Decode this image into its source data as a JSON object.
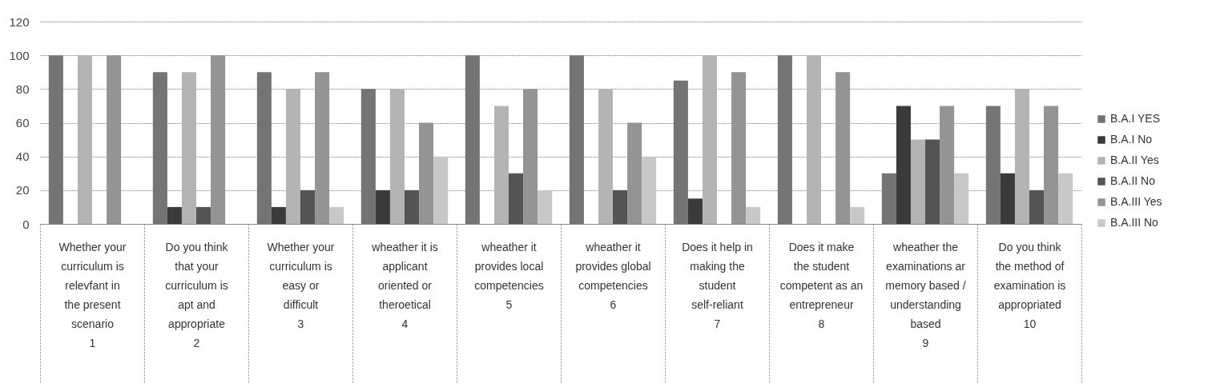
{
  "chart_data": {
    "type": "bar",
    "categories": [
      "Whether your curriculum is relevfant in the present scenario\n1",
      "Do you think that your curriculum is apt and appropriate\n2",
      "Whether your curriculum is easy or difficult\n3",
      "wheather it is applicant oriented or theroetical\n4",
      "wheather it provides local competencies\n5",
      "wheather it provides global competencies\n6",
      "Does it help in making the student self-reliant\n7",
      "Does it make the student competent as an entrepreneur\n8",
      "wheather the examinations ar memory based / understanding based\n9",
      "Do you think the method of examination is appropriated\n10"
    ],
    "series": [
      {
        "name": "B.A.I YES",
        "color": "#747474",
        "values": [
          100,
          90,
          90,
          80,
          100,
          100,
          85,
          100,
          30,
          70
        ]
      },
      {
        "name": "B.A.I No",
        "color": "#3a3a3a",
        "values": [
          0,
          10,
          10,
          20,
          0,
          0,
          15,
          0,
          70,
          30
        ]
      },
      {
        "name": "B.A.II Yes",
        "color": "#b4b4b4",
        "values": [
          100,
          90,
          80,
          80,
          70,
          80,
          100,
          100,
          50,
          80
        ]
      },
      {
        "name": "B.A.II No",
        "color": "#545454",
        "values": [
          0,
          10,
          20,
          20,
          30,
          20,
          0,
          0,
          50,
          20
        ]
      },
      {
        "name": "B.A.III Yes",
        "color": "#949494",
        "values": [
          100,
          100,
          90,
          60,
          80,
          60,
          90,
          90,
          70,
          70
        ]
      },
      {
        "name": "B.A.III No",
        "color": "#c8c8c8",
        "values": [
          0,
          0,
          10,
          40,
          20,
          40,
          10,
          10,
          30,
          30
        ]
      }
    ],
    "ylim": [
      0,
      120
    ],
    "yticks": [
      0,
      20,
      40,
      60,
      80,
      100,
      120
    ],
    "grid": "y",
    "legend": "right"
  }
}
